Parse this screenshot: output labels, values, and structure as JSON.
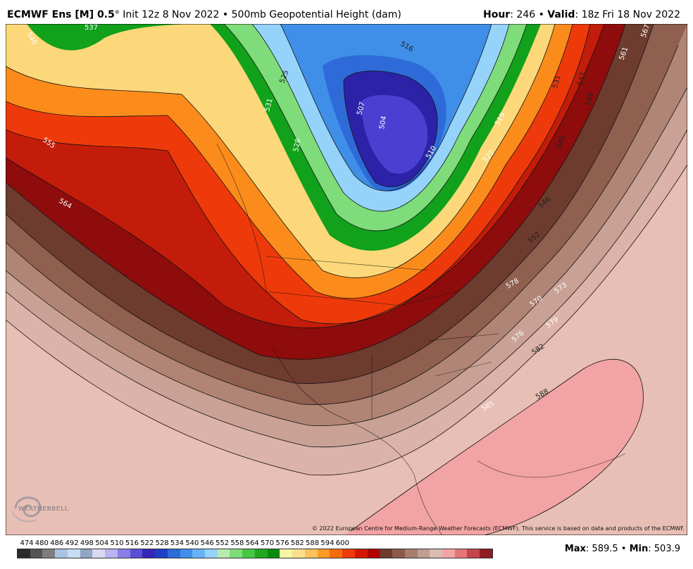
{
  "header": {
    "model": "ECMWF Ens [M] 0.5",
    "degree": "°",
    "init": "Init 12z 8 Nov 2022",
    "sep": "•",
    "field": "500mb Geopotential Height (dam)",
    "hour_label": "Hour",
    "hour_value": ": 246",
    "valid_label": "Valid",
    "valid_value": ": 18z Fri 18 Nov 2022"
  },
  "copyright": "© 2022 European Centre for Medium-Range Weather Forecasts (ECMWF). This service is based on data and products of the ECMWF.",
  "logo": {
    "name": "WEATHERBELL"
  },
  "stats": {
    "max_label": "Max",
    "max_value": ": 589.5",
    "sep": "•",
    "min_label": "Min",
    "min_value": ": 503.9"
  },
  "chart_data": {
    "type": "heatmap",
    "contour_labels": [
      "540",
      "537",
      "555",
      "564",
      "516",
      "525",
      "507",
      "504",
      "519",
      "522",
      "531",
      "543",
      "549",
      "540",
      "546",
      "552",
      "567",
      "561",
      "573",
      "570",
      "578",
      "579",
      "576",
      "582",
      "585",
      "588",
      "531",
      "528",
      "510"
    ],
    "colorbar": {
      "ticks": [
        "474",
        "480",
        "486",
        "492",
        "498",
        "504",
        "510",
        "516",
        "522",
        "528",
        "534",
        "540",
        "546",
        "552",
        "558",
        "564",
        "570",
        "576",
        "582",
        "588",
        "594",
        "600"
      ],
      "colors": [
        "#2b2b2b",
        "#555555",
        "#7d7d7d",
        "#a9c4e3",
        "#c9ddf0",
        "#8fa6c4",
        "#d8d8f0",
        "#b9b3f2",
        "#8a7ee8",
        "#5b4ed6",
        "#3427b8",
        "#1f3fc7",
        "#2e6bd9",
        "#3f8fe8",
        "#65b3f5",
        "#95d3fb",
        "#b7ecb1",
        "#7fdc7a",
        "#46c843",
        "#1fa820",
        "#0b8a12",
        "#f5f5a5",
        "#fbe08c",
        "#fcc35c",
        "#fb9b23",
        "#f46d0c",
        "#ec3a0a",
        "#d41505",
        "#b10000",
        "#6e3b2f",
        "#8c5a4a",
        "#a77d6c",
        "#c19e91",
        "#d9bcb2",
        "#f2a3a3",
        "#e6757a",
        "#c7434b",
        "#8f1c20"
      ]
    }
  }
}
